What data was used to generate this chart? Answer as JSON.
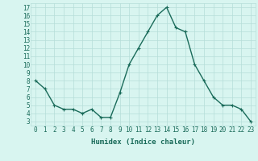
{
  "x": [
    0,
    1,
    2,
    3,
    4,
    5,
    6,
    7,
    8,
    9,
    10,
    11,
    12,
    13,
    14,
    15,
    16,
    17,
    18,
    19,
    20,
    21,
    22,
    23
  ],
  "y": [
    8,
    7,
    5,
    4.5,
    4.5,
    4,
    4.5,
    3.5,
    3.5,
    6.5,
    10,
    12,
    14,
    16,
    17,
    14.5,
    14,
    10,
    8,
    6,
    5,
    5,
    4.5,
    3
  ],
  "line_color": "#1a6b5a",
  "marker": "+",
  "bg_color": "#d8f5f0",
  "grid_color": "#b5ddd8",
  "xlabel": "Humidex (Indice chaleur)",
  "xlim": [
    -0.5,
    23.5
  ],
  "ylim": [
    2.5,
    17.5
  ],
  "yticks": [
    3,
    4,
    5,
    6,
    7,
    8,
    9,
    10,
    11,
    12,
    13,
    14,
    15,
    16,
    17
  ],
  "xticks": [
    0,
    1,
    2,
    3,
    4,
    5,
    6,
    7,
    8,
    9,
    10,
    11,
    12,
    13,
    14,
    15,
    16,
    17,
    18,
    19,
    20,
    21,
    22,
    23
  ],
  "tick_fontsize": 5.5,
  "xlabel_fontsize": 6.5,
  "line_width": 1.0,
  "marker_size": 3
}
